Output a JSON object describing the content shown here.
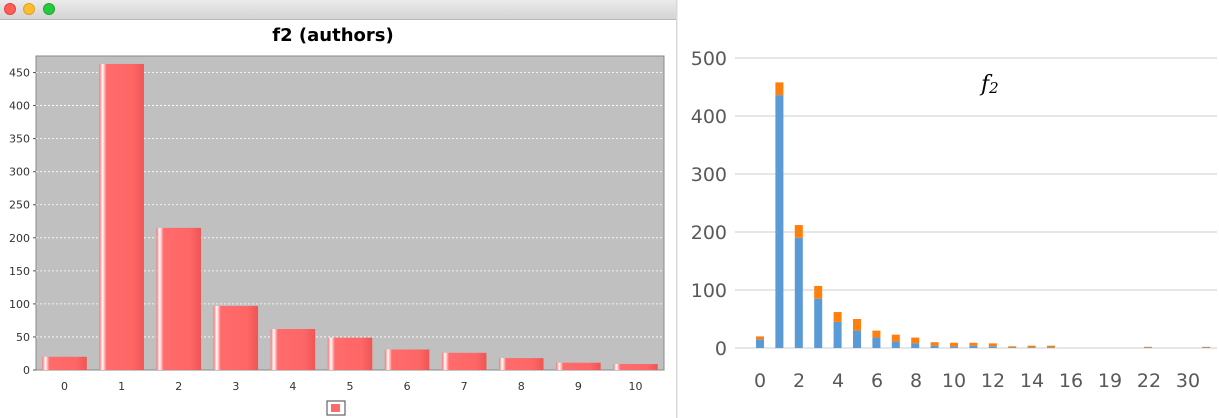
{
  "window": {
    "controls": [
      "close",
      "minimize",
      "maximize"
    ],
    "colors": {
      "close": "#fd5f57",
      "minimize": "#febc2e",
      "maximize": "#28c840"
    }
  },
  "chart_data": [
    {
      "type": "bar",
      "title": "f2 (authors)",
      "xlabel": "",
      "ylabel": "",
      "categories": [
        "0",
        "1",
        "2",
        "3",
        "4",
        "5",
        "6",
        "7",
        "8",
        "9",
        "10"
      ],
      "series": [
        {
          "values": [
            20,
            463,
            215,
            97,
            62,
            49,
            31,
            26,
            18,
            11,
            9
          ],
          "color": "#ff6b6b"
        }
      ],
      "ylim": [
        0,
        475
      ],
      "yticks": [
        0,
        50,
        100,
        150,
        200,
        250,
        300,
        350,
        400,
        450
      ],
      "grid": true,
      "background": "#c0c0c0",
      "legend": "bottom-center"
    },
    {
      "type": "bar",
      "stacked": true,
      "title": "f",
      "title_subscript": "2",
      "xlabel": "",
      "ylabel": "",
      "x": [
        0,
        1,
        2,
        3,
        4,
        5,
        6,
        7,
        8,
        9,
        10,
        11,
        12,
        13,
        14,
        15,
        16,
        17,
        18,
        19,
        20,
        21,
        22,
        23,
        30
      ],
      "xtick_labels": [
        "0",
        "2",
        "4",
        "6",
        "8",
        "10",
        "12",
        "14",
        "16",
        "19",
        "22",
        "30"
      ],
      "series": [
        {
          "values": [
            15,
            436,
            190,
            85,
            45,
            30,
            18,
            11,
            8,
            4,
            3,
            4,
            3,
            1,
            1,
            1,
            0,
            0,
            0,
            0,
            1,
            0,
            0,
            1,
            0
          ],
          "color": "#5b9bd5"
        },
        {
          "values": [
            5,
            22,
            22,
            22,
            17,
            20,
            12,
            12,
            10,
            6,
            6,
            5,
            5,
            2,
            3,
            3,
            0,
            0,
            0,
            0,
            1,
            0,
            0,
            1,
            0
          ],
          "color": "#ff7f0e"
        }
      ],
      "ylim": [
        0,
        500
      ],
      "yticks": [
        0,
        100,
        200,
        300,
        400,
        500
      ],
      "grid": true,
      "legend": "none"
    }
  ]
}
